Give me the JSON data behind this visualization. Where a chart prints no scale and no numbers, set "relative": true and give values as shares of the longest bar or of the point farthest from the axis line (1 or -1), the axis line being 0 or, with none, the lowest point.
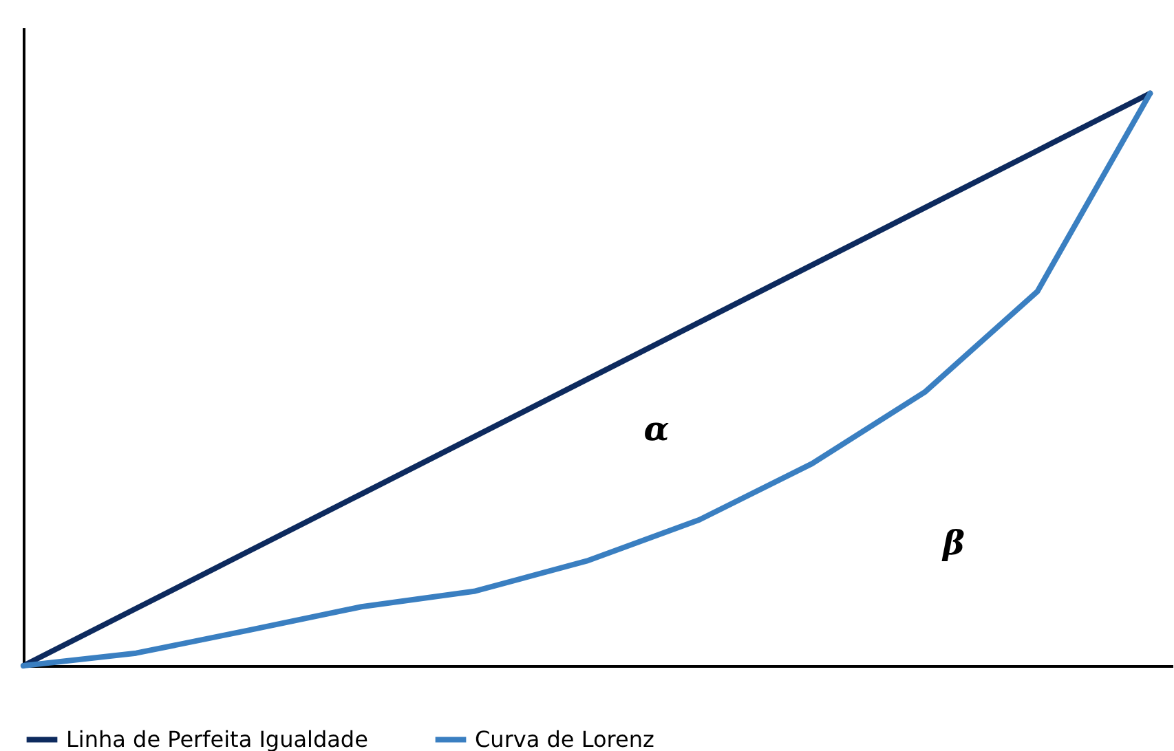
{
  "chart_data": {
    "type": "line",
    "relative": true,
    "categories": [
      null,
      null,
      null,
      null,
      null,
      null,
      null,
      null,
      null,
      null,
      null
    ],
    "series": [
      {
        "name": "Linha de Perfeita Igualdade",
        "color": "#0d2a5e",
        "values": [
          0,
          0.1,
          0.2,
          0.3,
          0.4,
          0.5,
          0.6,
          0.7,
          0.8,
          0.9,
          1
        ]
      },
      {
        "name": "Curva de Lorenz",
        "color": "#3a7fc1",
        "values": [
          0,
          0.022,
          0.062,
          0.103,
          0.13,
          0.183,
          0.255,
          0.353,
          0.478,
          0.654,
          1
        ]
      }
    ],
    "annotations": [
      "α",
      "β"
    ],
    "legend": "bottom",
    "grid": false,
    "marker": "none",
    "line_style": "solid"
  }
}
